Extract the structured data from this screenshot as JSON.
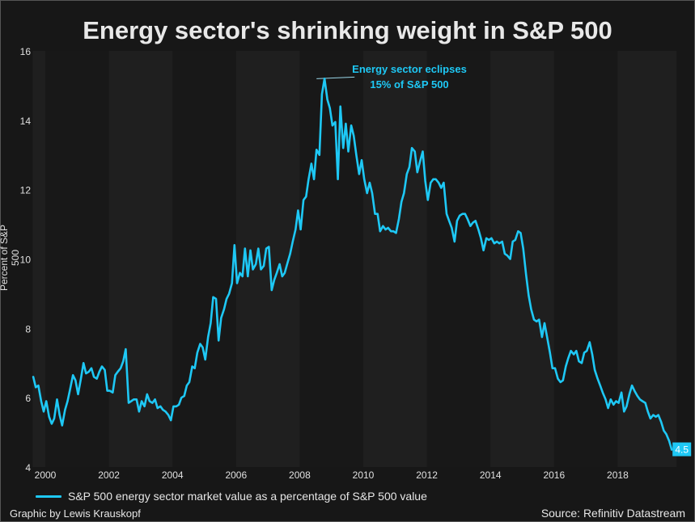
{
  "chart_data": {
    "type": "line",
    "title": "Energy sector's shrinking weight in S&P 500",
    "xlabel": "",
    "ylabel": "Percent of S&P 500",
    "ylim": [
      4,
      16
    ],
    "xlim": [
      1999.6,
      2019.85
    ],
    "y_ticks": [
      "4",
      "6",
      "8",
      "10",
      "12",
      "14",
      "16"
    ],
    "y_tick_values": [
      4,
      6,
      8,
      10,
      12,
      14,
      16
    ],
    "x_ticks": [
      "2000",
      "2002",
      "2004",
      "2006",
      "2008",
      "2010",
      "2012",
      "2014",
      "2016",
      "2018"
    ],
    "x_tick_values": [
      2000,
      2002,
      2004,
      2006,
      2008,
      2010,
      2012,
      2014,
      2016,
      2018
    ],
    "shaded_bands": [
      [
        1999.6,
        2000.0
      ],
      [
        2002,
        2004
      ],
      [
        2006,
        2008
      ],
      [
        2010,
        2012
      ],
      [
        2014,
        2016
      ],
      [
        2018,
        2019.85
      ]
    ],
    "grid": false,
    "legend_position": "bottom-left",
    "series": [
      {
        "name": "S&P 500 energy sector market value as a percentage of S&P 500 value",
        "color": "#1ec8f5",
        "x": [
          1999.62,
          1999.7,
          1999.78,
          1999.87,
          1999.95,
          2000.03,
          2000.12,
          2000.2,
          2000.28,
          2000.37,
          2000.45,
          2000.53,
          2000.62,
          2000.7,
          2000.78,
          2000.87,
          2000.95,
          2001.03,
          2001.12,
          2001.2,
          2001.28,
          2001.37,
          2001.45,
          2001.53,
          2001.62,
          2001.7,
          2001.78,
          2001.87,
          2001.95,
          2002.03,
          2002.12,
          2002.2,
          2002.28,
          2002.37,
          2002.45,
          2002.53,
          2002.62,
          2002.7,
          2002.78,
          2002.87,
          2002.95,
          2003.03,
          2003.12,
          2003.2,
          2003.28,
          2003.37,
          2003.45,
          2003.53,
          2003.62,
          2003.7,
          2003.78,
          2003.87,
          2003.95,
          2004.03,
          2004.12,
          2004.2,
          2004.28,
          2004.37,
          2004.45,
          2004.53,
          2004.62,
          2004.7,
          2004.78,
          2004.87,
          2004.95,
          2005.03,
          2005.12,
          2005.2,
          2005.28,
          2005.37,
          2005.45,
          2005.53,
          2005.62,
          2005.7,
          2005.78,
          2005.87,
          2005.95,
          2006.03,
          2006.12,
          2006.2,
          2006.28,
          2006.37,
          2006.45,
          2006.53,
          2006.62,
          2006.7,
          2006.78,
          2006.87,
          2006.95,
          2007.03,
          2007.12,
          2007.2,
          2007.28,
          2007.37,
          2007.45,
          2007.53,
          2007.62,
          2007.7,
          2007.78,
          2007.87,
          2007.95,
          2008.03,
          2008.12,
          2008.2,
          2008.28,
          2008.37,
          2008.45,
          2008.53,
          2008.62,
          2008.7,
          2008.78,
          2008.87,
          2008.95,
          2009.03,
          2009.12,
          2009.2,
          2009.28,
          2009.37,
          2009.45,
          2009.53,
          2009.62,
          2009.7,
          2009.78,
          2009.87,
          2009.95,
          2010.03,
          2010.12,
          2010.2,
          2010.28,
          2010.37,
          2010.45,
          2010.53,
          2010.62,
          2010.7,
          2010.78,
          2010.87,
          2010.95,
          2011.03,
          2011.12,
          2011.2,
          2011.28,
          2011.37,
          2011.45,
          2011.53,
          2011.62,
          2011.7,
          2011.78,
          2011.87,
          2011.95,
          2012.03,
          2012.12,
          2012.2,
          2012.28,
          2012.37,
          2012.45,
          2012.53,
          2012.62,
          2012.7,
          2012.78,
          2012.87,
          2012.95,
          2013.03,
          2013.12,
          2013.2,
          2013.28,
          2013.37,
          2013.45,
          2013.53,
          2013.62,
          2013.7,
          2013.78,
          2013.87,
          2013.95,
          2014.03,
          2014.12,
          2014.2,
          2014.28,
          2014.37,
          2014.45,
          2014.53,
          2014.62,
          2014.7,
          2014.78,
          2014.87,
          2014.95,
          2015.03,
          2015.12,
          2015.2,
          2015.28,
          2015.37,
          2015.45,
          2015.53,
          2015.62,
          2015.7,
          2015.78,
          2015.87,
          2015.95,
          2016.03,
          2016.12,
          2016.2,
          2016.28,
          2016.37,
          2016.45,
          2016.53,
          2016.62,
          2016.7,
          2016.78,
          2016.87,
          2016.95,
          2017.03,
          2017.12,
          2017.2,
          2017.28,
          2017.37,
          2017.45,
          2017.53,
          2017.62,
          2017.7,
          2017.78,
          2017.87,
          2017.95,
          2018.03,
          2018.12,
          2018.2,
          2018.28,
          2018.37,
          2018.45,
          2018.53,
          2018.62,
          2018.7,
          2018.78,
          2018.87,
          2018.95,
          2019.03,
          2019.12,
          2019.2,
          2019.28,
          2019.37,
          2019.45,
          2019.53,
          2019.62,
          2019.7
        ],
        "values": [
          6.6,
          6.3,
          6.35,
          5.9,
          5.6,
          5.9,
          5.45,
          5.25,
          5.4,
          5.95,
          5.5,
          5.2,
          5.65,
          5.9,
          6.25,
          6.65,
          6.5,
          6.1,
          6.55,
          7.0,
          6.7,
          6.75,
          6.85,
          6.6,
          6.55,
          6.75,
          6.9,
          6.8,
          6.2,
          6.2,
          6.15,
          6.65,
          6.75,
          6.85,
          7.05,
          7.4,
          5.85,
          5.9,
          5.95,
          5.95,
          5.6,
          5.9,
          5.75,
          6.1,
          5.9,
          5.85,
          5.95,
          5.7,
          5.75,
          5.65,
          5.6,
          5.5,
          5.35,
          5.75,
          5.75,
          5.8,
          6.0,
          6.05,
          6.35,
          6.45,
          6.9,
          6.85,
          7.3,
          7.55,
          7.45,
          7.1,
          7.75,
          8.15,
          8.9,
          8.85,
          7.65,
          8.3,
          8.55,
          8.85,
          9.0,
          9.3,
          10.4,
          9.3,
          9.6,
          9.5,
          10.3,
          9.5,
          10.25,
          9.7,
          9.85,
          10.3,
          9.7,
          9.8,
          10.3,
          10.35,
          9.1,
          9.4,
          9.6,
          9.85,
          9.5,
          9.6,
          9.9,
          10.15,
          10.5,
          10.85,
          11.4,
          10.85,
          11.7,
          11.8,
          12.3,
          12.75,
          12.3,
          13.15,
          13.0,
          14.75,
          15.2,
          14.6,
          14.35,
          13.85,
          13.95,
          12.3,
          14.4,
          13.2,
          13.9,
          13.1,
          13.85,
          13.55,
          13.0,
          12.45,
          12.85,
          12.3,
          11.9,
          12.2,
          11.9,
          11.3,
          11.3,
          10.8,
          10.95,
          10.85,
          10.9,
          10.8,
          10.8,
          10.75,
          11.15,
          11.65,
          11.9,
          12.45,
          12.65,
          13.2,
          13.1,
          12.5,
          12.8,
          13.1,
          12.25,
          11.7,
          12.2,
          12.3,
          12.3,
          12.2,
          12.05,
          12.2,
          11.3,
          11.1,
          10.9,
          10.5,
          11.1,
          11.25,
          11.3,
          11.3,
          11.15,
          10.95,
          11.05,
          11.1,
          10.85,
          10.6,
          10.25,
          10.6,
          10.55,
          10.6,
          10.45,
          10.5,
          10.45,
          10.5,
          10.15,
          10.1,
          10.0,
          10.5,
          10.55,
          10.8,
          10.75,
          10.3,
          9.55,
          8.95,
          8.55,
          8.25,
          8.2,
          8.25,
          7.75,
          8.15,
          7.75,
          7.3,
          6.85,
          6.85,
          6.55,
          6.45,
          6.5,
          6.9,
          7.15,
          7.35,
          7.25,
          7.35,
          7.05,
          7.0,
          7.3,
          7.35,
          7.6,
          7.25,
          6.8,
          6.55,
          6.35,
          6.15,
          5.95,
          5.7,
          5.95,
          5.8,
          5.9,
          5.85,
          6.15,
          5.6,
          5.75,
          6.1,
          6.35,
          6.2,
          6.05,
          5.95,
          5.9,
          5.85,
          5.6,
          5.4,
          5.5,
          5.45,
          5.5,
          5.3,
          5.05,
          4.95,
          4.75,
          4.5
        ],
        "last_value_label": "4.5"
      }
    ],
    "annotations": [
      {
        "line1": "Energy sector eclipses",
        "line2": "15% of S&P 500",
        "x": 2008.53,
        "y": 15.2
      }
    ]
  },
  "legend": {
    "label": "S&P 500 energy sector market value as a percentage of S&P 500 value"
  },
  "footer": {
    "credit": "Graphic by Lewis Krauskopf",
    "source": "Source: Refinitiv Datastream"
  }
}
